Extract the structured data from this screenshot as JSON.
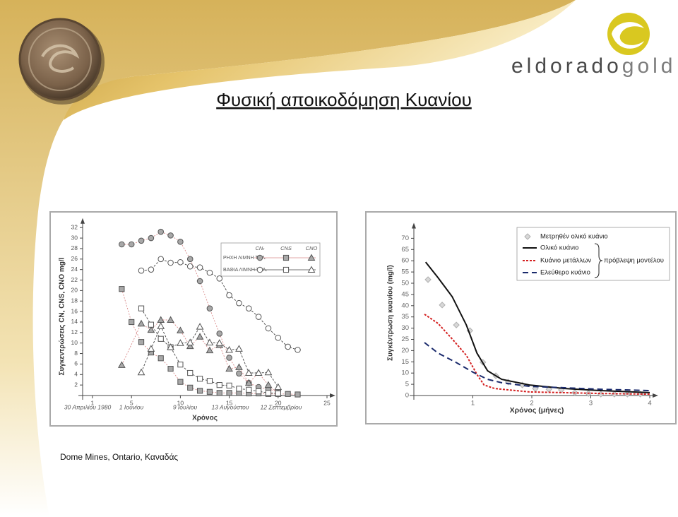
{
  "slide": {
    "title": "Φυσική αποικοδόμηση Κυανίου",
    "logo": {
      "first": "eldorado",
      "second": "gold"
    },
    "caption": "Dome Mines, Ontario, Καναδάς"
  },
  "chart_data": [
    {
      "type": "line",
      "x_label": "Χρόνος",
      "y_label": "Συγκεντρώσεις CN, CNS, CNO mg/l",
      "date_labels": [
        "30 Απριλίου 1980",
        "1 Ιουνίου",
        "9 Ιουλίου",
        "13 Αυγούστου",
        "12 Σεπτεμβρίου"
      ],
      "xlim": [
        0,
        25
      ],
      "xticks": [
        1,
        5,
        10,
        15,
        20,
        25
      ],
      "ylim": [
        0,
        33
      ],
      "yticks": [
        2,
        4,
        6,
        8,
        10,
        12,
        14,
        16,
        18,
        20,
        22,
        24,
        26,
        28,
        30,
        32
      ],
      "legend": {
        "columns": [
          "CNₜ",
          "CNS",
          "CNO"
        ],
        "rows": [
          "ΡΗΧΗ ΛΙΜΝΗ ΤΕΛ.",
          "ΒΑΘΙΑ ΛΙΜΝΗ ΤΕΛ."
        ]
      },
      "series": [
        {
          "marker": "circle",
          "filled": true,
          "color": "#d98a8a",
          "x": [
            4,
            5,
            6,
            7,
            8,
            9,
            10,
            11,
            12,
            13,
            14,
            15,
            16,
            17,
            18,
            19,
            20
          ],
          "values": [
            28.8,
            28.8,
            29.5,
            30,
            31.2,
            30.5,
            29.3,
            26,
            21.8,
            16.6,
            11.8,
            7.2,
            4.2,
            2.4,
            1.6,
            1.2,
            0.8
          ]
        },
        {
          "marker": "square",
          "filled": true,
          "color": "#d98a8a",
          "x": [
            4,
            5,
            6,
            7,
            8,
            9,
            10,
            11,
            12,
            13,
            14,
            15,
            16,
            17,
            18,
            19,
            20,
            21,
            22
          ],
          "values": [
            20.3,
            14,
            10.2,
            8.2,
            7.1,
            5.1,
            2.6,
            1.5,
            0.9,
            0.7,
            0.5,
            0.5,
            0.5,
            0.4,
            0.4,
            0.3,
            0.3,
            0.3,
            0.2
          ]
        },
        {
          "marker": "triangle",
          "filled": true,
          "color": "#d98a8a",
          "x": [
            4,
            6,
            7,
            8,
            9,
            10,
            11,
            12,
            13,
            14,
            15,
            16,
            17,
            18,
            19,
            20
          ],
          "values": [
            5.8,
            13.7,
            12.5,
            14.4,
            14.4,
            12.4,
            9.4,
            11.2,
            8.6,
            9.6,
            5.1,
            5.4,
            2.4,
            4.3,
            2,
            0.4
          ]
        },
        {
          "marker": "circle",
          "filled": false,
          "color": "#444444",
          "x": [
            6,
            7,
            8,
            9,
            10,
            11,
            12,
            13,
            14,
            15,
            16,
            17,
            18,
            19,
            20,
            21,
            22
          ],
          "values": [
            23.8,
            24,
            26,
            25.3,
            25.4,
            24.6,
            24.4,
            23.4,
            22.3,
            19.1,
            17.6,
            16.6,
            15,
            12.8,
            11,
            9.3,
            8.7
          ]
        },
        {
          "marker": "square",
          "filled": false,
          "color": "#444444",
          "x": [
            6,
            7,
            8,
            9,
            10,
            11,
            12,
            13,
            14,
            15,
            16,
            17,
            18,
            19,
            20
          ],
          "values": [
            16.6,
            13.5,
            10.8,
            9.2,
            5.9,
            4.3,
            3.2,
            2.8,
            2,
            1.9,
            1.3,
            1.1,
            0.8,
            0.5,
            0.4
          ]
        },
        {
          "marker": "triangle",
          "filled": false,
          "color": "#444444",
          "x": [
            6,
            7,
            8,
            9,
            10,
            11,
            12,
            13,
            14,
            15,
            16,
            17,
            18,
            19,
            20
          ],
          "values": [
            4.4,
            8.9,
            13.2,
            9.2,
            10,
            10.1,
            13.1,
            10.1,
            10,
            8.7,
            8.9,
            4.3,
            4.3,
            4.4,
            1.6
          ]
        }
      ]
    },
    {
      "type": "line",
      "x_label": "Χρόνος (μήνες)",
      "y_label": "Συγκέντρωση κυανίου (mg/l)",
      "xlim": [
        0,
        4
      ],
      "xticks": [
        1,
        2,
        3,
        4
      ],
      "ylim": [
        0,
        75
      ],
      "yticks": [
        0,
        5,
        10,
        15,
        20,
        25,
        30,
        35,
        40,
        45,
        50,
        55,
        60,
        65,
        70
      ],
      "brace_label": "πρόβλεψη μοντέλου",
      "series": [
        {
          "name": "Μετρηθέν ολικό κυάνιο",
          "mode": "markers",
          "marker": "diamond",
          "color": "#b0b0b0",
          "x": [
            0.24,
            0.48,
            0.72,
            0.95,
            1.17,
            1.39,
            1.6,
            1.84,
            2.06,
            2.29,
            2.5,
            2.73,
            2.96,
            3.17,
            3.4,
            3.62,
            3.84
          ],
          "values": [
            51.6,
            40.3,
            31.4,
            28.9,
            14.8,
            8.8,
            6,
            4.7,
            3.1,
            2.8,
            2.5,
            1.3,
            0.9,
            0.6,
            0.6,
            0.6,
            0.6
          ]
        },
        {
          "name": "Ολικό κυάνιο",
          "mode": "lines",
          "color": "#111111",
          "dash": "none",
          "x": [
            0.2,
            0.41,
            0.65,
            0.89,
            1.07,
            1.25,
            1.49,
            1.96,
            2.56,
            3.16,
            4
          ],
          "values": [
            59.4,
            52.5,
            44,
            31.4,
            18.9,
            11,
            7.2,
            4.7,
            3.1,
            2.2,
            1.3
          ]
        },
        {
          "name": "Κυάνιο μετάλλων",
          "mode": "lines",
          "color": "#d42020",
          "dash": "3,2",
          "x": [
            0.18,
            0.41,
            0.65,
            0.89,
            1.07,
            1.19,
            1.37,
            1.96,
            3.16,
            4
          ],
          "values": [
            36.2,
            32.1,
            25.2,
            17.9,
            9.4,
            4.7,
            3.1,
            1.6,
            0.9,
            0.6
          ]
        },
        {
          "name": "Ελεύθερο κυάνιο",
          "mode": "lines",
          "color": "#1a2a6c",
          "dash": "8,5",
          "x": [
            0.18,
            0.41,
            0.71,
            1,
            1.25,
            1.49,
            1.96,
            3.16,
            4
          ],
          "values": [
            23.6,
            18.9,
            14.8,
            10.4,
            7.2,
            5.7,
            4.1,
            2.8,
            2.2
          ]
        }
      ]
    }
  ]
}
